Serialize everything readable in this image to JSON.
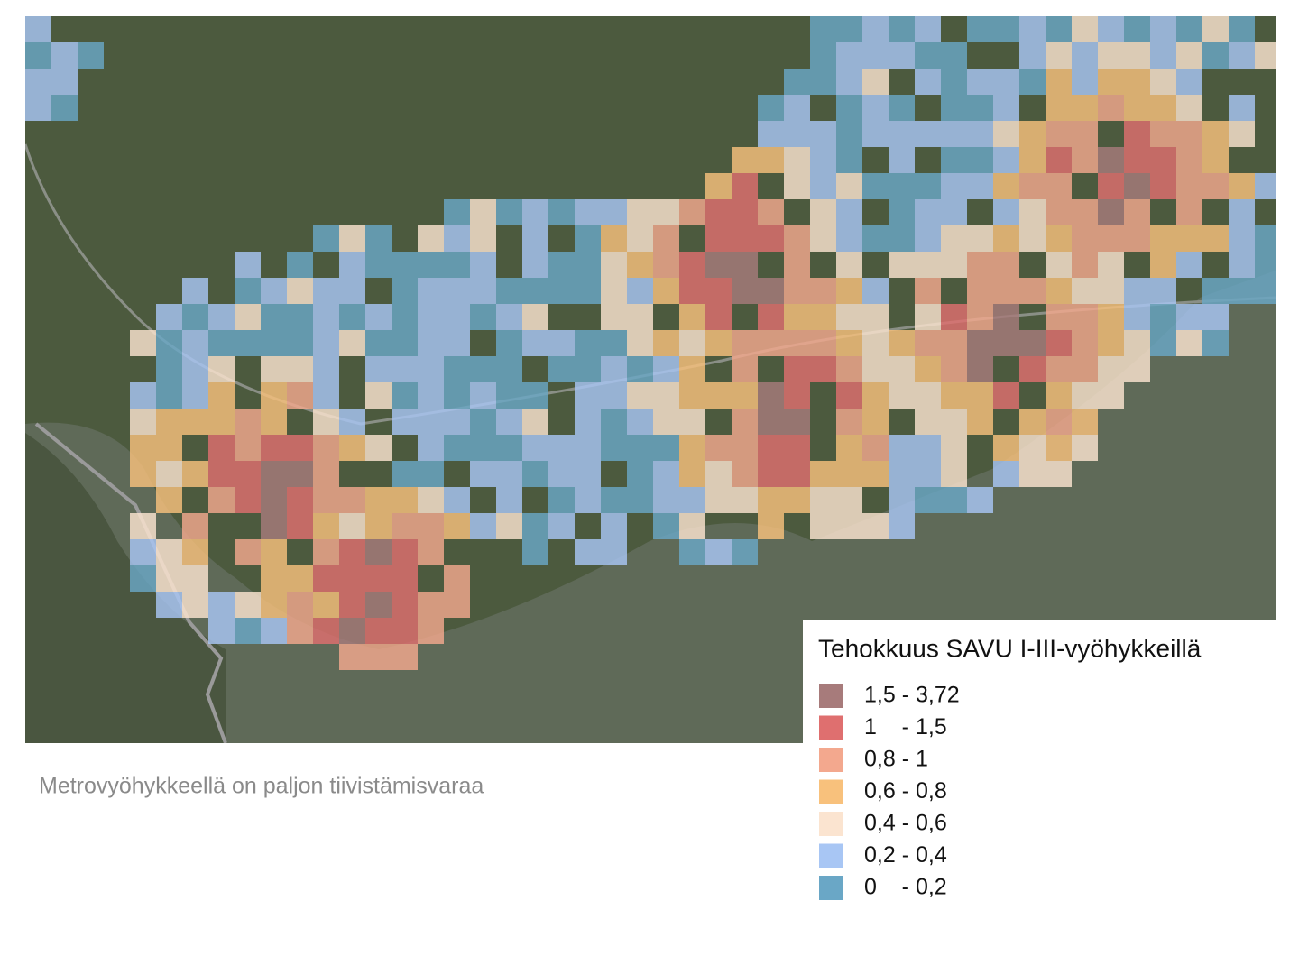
{
  "legend": {
    "title": "Tehokkuus SAVU I-III-vyöhykkeillä",
    "items": [
      {
        "label": "1,5 - 3,72",
        "color": "#a77b7b"
      },
      {
        "label": "1    - 1,5",
        "color": "#df6f6f"
      },
      {
        "label": "0,8 - 1",
        "color": "#f3a88e"
      },
      {
        "label": "0,6 - 0,8",
        "color": "#f8c17c"
      },
      {
        "label": "0,4 - 0,6",
        "color": "#fbe4d0"
      },
      {
        "label": "0,2 - 0,4",
        "color": "#a8c6f4"
      },
      {
        "label": "0    - 0,2",
        "color": "#6aa7c6"
      }
    ]
  },
  "caption": "Metrovyöhykkeellä on paljon tiivistämisvaraa"
}
